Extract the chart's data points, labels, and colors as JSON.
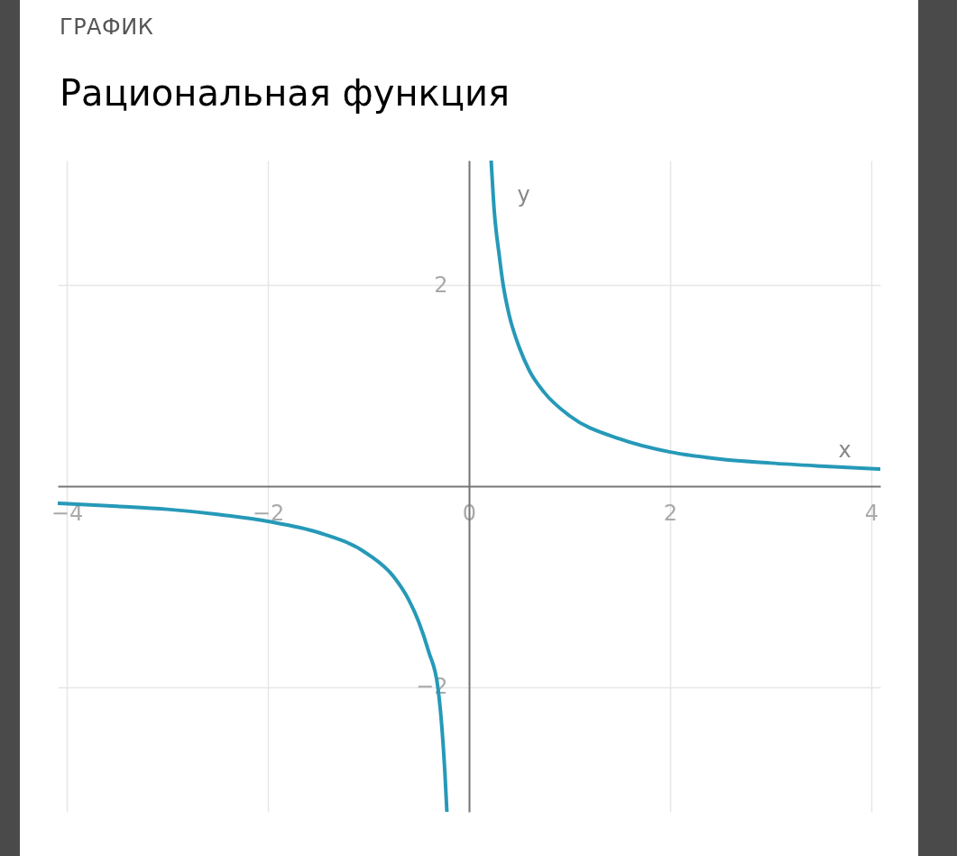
{
  "chart_data": {
    "type": "line",
    "subtitle": "ГРАФИК",
    "title": "Рациональная функция",
    "xlabel": "x",
    "ylabel": "y",
    "xlim": [
      -4.09,
      4.09
    ],
    "ylim": [
      -3.24,
      3.24
    ],
    "xticks": [
      -4,
      -2,
      0,
      2,
      4
    ],
    "yticks": [
      -2,
      2
    ],
    "grid": true,
    "series": [
      {
        "color": "#2699b8",
        "x": [
          -4.09,
          -3.5,
          -3,
          -2.5,
          -2,
          -1.5,
          -1,
          -0.75,
          -0.6,
          -0.5,
          -0.4,
          -0.31,
          -0.27,
          -0.24,
          -0.22
        ],
        "values": [
          -0.17,
          -0.2,
          -0.23,
          -0.28,
          -0.35,
          -0.46,
          -0.68,
          -0.9,
          -1.13,
          -1.35,
          -1.65,
          -2.0,
          -2.4,
          -2.85,
          -3.24
        ]
      },
      {
        "color": "#2699b8",
        "x": [
          0.22,
          0.25,
          0.3,
          0.34,
          0.4,
          0.5,
          0.6,
          0.75,
          1,
          1.5,
          2,
          2.5,
          3,
          3.5,
          4.09
        ],
        "values": [
          3.24,
          2.75,
          2.3,
          2.0,
          1.7,
          1.38,
          1.15,
          0.93,
          0.7,
          0.47,
          0.34,
          0.27,
          0.23,
          0.2,
          0.17
        ]
      }
    ]
  }
}
